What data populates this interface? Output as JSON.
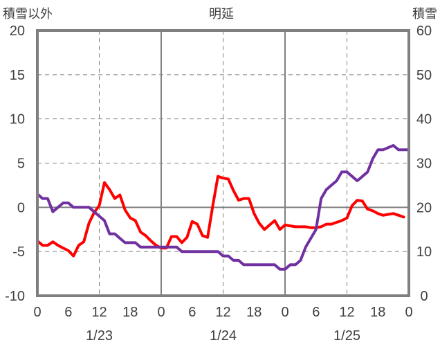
{
  "header": {
    "left_label": "積雪以外",
    "center_label": "明延",
    "right_label": "積雪"
  },
  "colors": {
    "left_series": "#ff0000",
    "right_series": "#7030a0",
    "frame": "#7f7f7f",
    "grid": "#7f7f7f"
  },
  "chart_data": {
    "type": "line",
    "title": "明延",
    "x_unit": "hours from 1/23 00:00",
    "xlim": [
      0,
      72
    ],
    "x_tick_positions": [
      0,
      6,
      12,
      18,
      24,
      30,
      36,
      42,
      48,
      54,
      60,
      66,
      72
    ],
    "x_tick_labels": [
      "0",
      "6",
      "12",
      "18",
      "0",
      "6",
      "12",
      "18",
      "0",
      "6",
      "12",
      "18",
      "0"
    ],
    "date_labels": [
      {
        "x": 12,
        "text": "1/23"
      },
      {
        "x": 36,
        "text": "1/24"
      },
      {
        "x": 60,
        "text": "1/25"
      }
    ],
    "day_boundaries": [
      24,
      48
    ],
    "dashed_gridlines_x": [
      12,
      36,
      60
    ],
    "left_axis": {
      "label": "積雪以外",
      "ylim": [
        -10,
        20
      ],
      "ticks": [
        -10,
        -5,
        0,
        5,
        10,
        15,
        20
      ]
    },
    "right_axis": {
      "label": "積雪",
      "ylim": [
        0,
        60
      ],
      "ticks": [
        0,
        10,
        20,
        30,
        40,
        50,
        60
      ]
    },
    "legend": "none",
    "series": [
      {
        "axis": "left",
        "color": "#ff0000",
        "x": [
          0,
          1,
          2,
          3,
          4,
          5,
          6,
          7,
          8,
          9,
          10,
          11,
          12,
          13,
          14,
          15,
          16,
          17,
          18,
          19,
          20,
          21,
          22,
          23,
          24,
          25,
          26,
          27,
          28,
          29,
          30,
          31,
          32,
          33,
          34,
          35,
          36,
          37,
          38,
          39,
          40,
          41,
          42,
          43,
          44,
          45,
          46,
          47,
          48,
          49,
          50,
          51,
          52,
          53,
          54,
          55,
          56,
          57,
          58,
          59,
          60,
          61,
          62,
          63,
          64,
          65,
          66,
          67,
          68,
          69,
          70,
          71
        ],
        "values": [
          -3.8,
          -4.3,
          -4.3,
          -3.9,
          -4.3,
          -4.6,
          -4.9,
          -5.5,
          -4.3,
          -3.9,
          -1.8,
          -0.6,
          0.2,
          2.8,
          2.0,
          1.0,
          1.4,
          -0.3,
          -1.2,
          -1.5,
          -2.8,
          -3.2,
          -3.8,
          -4.3,
          -4.6,
          -4.6,
          -3.3,
          -3.3,
          -4.0,
          -3.4,
          -1.6,
          -1.9,
          -3.2,
          -3.4,
          0.2,
          3.5,
          3.3,
          3.2,
          1.9,
          0.8,
          1.0,
          1.0,
          -0.7,
          -1.8,
          -2.5,
          -2.0,
          -1.5,
          -2.5,
          -2.0,
          -2.1,
          -2.2,
          -2.2,
          -2.2,
          -2.3,
          -2.3,
          -2.2,
          -1.9,
          -1.9,
          -1.7,
          -1.5,
          -1.2,
          0.2,
          0.8,
          0.7,
          -0.2,
          -0.4,
          -0.7,
          -0.9,
          -0.8,
          -0.7,
          -0.9,
          -1.1
        ]
      },
      {
        "axis": "right",
        "color": "#7030a0",
        "x": [
          0,
          1,
          2,
          3,
          4,
          5,
          6,
          7,
          8,
          9,
          10,
          11,
          12,
          13,
          14,
          15,
          16,
          17,
          18,
          19,
          20,
          21,
          22,
          23,
          24,
          25,
          26,
          27,
          28,
          29,
          30,
          31,
          32,
          33,
          34,
          35,
          36,
          37,
          38,
          39,
          40,
          41,
          42,
          43,
          44,
          45,
          46,
          47,
          48,
          49,
          50,
          51,
          52,
          53,
          54,
          55,
          56,
          57,
          58,
          59,
          60,
          61,
          62,
          63,
          64,
          65,
          66,
          67,
          69,
          70,
          71,
          72
        ],
        "values": [
          23,
          22,
          22,
          19,
          20,
          21,
          21,
          20,
          20,
          20,
          20,
          19,
          18,
          17,
          14,
          14,
          13,
          12,
          12,
          12,
          11,
          11,
          11,
          11,
          11,
          11,
          11,
          11,
          10,
          10,
          10,
          10,
          10,
          10,
          10,
          10,
          9,
          9,
          8,
          8,
          7,
          7,
          7,
          7,
          7,
          7,
          7,
          6,
          6,
          7,
          7,
          8,
          11,
          13,
          15,
          22,
          24,
          25,
          26,
          28,
          28,
          27,
          26,
          27,
          28,
          31,
          33,
          33,
          34,
          33,
          33,
          33
        ]
      }
    ]
  }
}
